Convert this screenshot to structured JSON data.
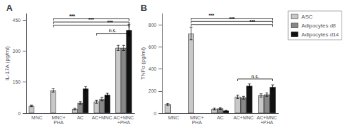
{
  "chart_data": [
    {
      "type": "bar",
      "title": "A",
      "ylabel": "IL-17A (pg/ml)",
      "categories": [
        "MNC",
        "MNC+\nPHA",
        "AC",
        "AC+MNC",
        "AC+MNC\n+PHA"
      ],
      "ylim": [
        0,
        480
      ],
      "yticks": [
        0,
        150,
        300,
        450
      ],
      "grid": false,
      "series": [
        {
          "name": "ASC",
          "color": "#c8c8c8",
          "values": [
            35,
            110,
            20,
            55,
            315
          ],
          "errors": [
            4,
            8,
            4,
            7,
            12
          ]
        },
        {
          "name": "Adipocytes d8",
          "color": "#888888",
          "values": [
            null,
            null,
            50,
            68,
            315
          ],
          "errors": [
            null,
            null,
            7,
            8,
            12
          ]
        },
        {
          "name": "Adipocytes d14",
          "color": "#111111",
          "values": [
            null,
            null,
            118,
            88,
            400
          ],
          "errors": [
            null,
            null,
            10,
            8,
            28
          ]
        }
      ],
      "annotations": [
        {
          "label": "***",
          "y": 456,
          "from": "MNC+\nPHA",
          "to": "AC+MNC\n+PHA"
        },
        {
          "label": "***",
          "y": 440,
          "from": "MNC+\nPHA",
          "to": "AC+MNC\n+PHA"
        },
        {
          "label": "***",
          "y": 424,
          "from": "MNC+\nPHA",
          "to": "AC+MNC\n+PHA"
        },
        {
          "label": "n.s.",
          "y": 385,
          "from": "AC+MNC",
          "to": "AC+MNC\n+PHA"
        }
      ]
    },
    {
      "type": "bar",
      "title": "B",
      "ylabel": "TNFα (pg/ml)",
      "categories": [
        "MNC",
        "MNC+\nPHA",
        "AC",
        "AC+MNC",
        "AC+MNC\n+PHA"
      ],
      "ylim": [
        0,
        900
      ],
      "yticks": [
        0,
        200,
        400,
        600,
        800
      ],
      "grid": false,
      "legend": "right",
      "series": [
        {
          "name": "ASC",
          "color": "#c8c8c8",
          "values": [
            80,
            720,
            38,
            148,
            160
          ],
          "errors": [
            10,
            55,
            8,
            14,
            15
          ]
        },
        {
          "name": "Adipocytes d8",
          "color": "#888888",
          "values": [
            null,
            null,
            42,
            140,
            168
          ],
          "errors": [
            null,
            null,
            8,
            13,
            15
          ]
        },
        {
          "name": "Adipocytes d14",
          "color": "#111111",
          "values": [
            null,
            null,
            22,
            248,
            235
          ],
          "errors": [
            null,
            null,
            5,
            18,
            20
          ]
        }
      ],
      "annotations": [
        {
          "label": "***",
          "y": 858,
          "from": "MNC+\nPHA",
          "to": "AC+MNC\n+PHA"
        },
        {
          "label": "***",
          "y": 830,
          "from": "MNC+\nPHA",
          "to": "AC+MNC\n+PHA"
        },
        {
          "label": "***",
          "y": 802,
          "from": "MNC+\nPHA",
          "to": "AC+MNC\n+PHA"
        },
        {
          "label": "n.s.",
          "y": 310,
          "from": "AC+MNC",
          "to": "AC+MNC\n+PHA"
        }
      ]
    }
  ]
}
